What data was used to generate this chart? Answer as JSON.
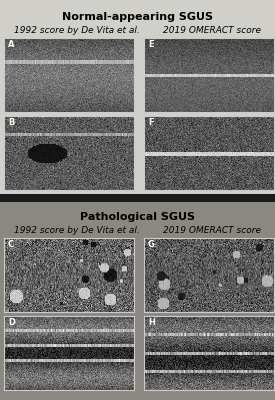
{
  "title_top": "Normal-appearing SGUS",
  "title_bottom": "Pathological SGUS",
  "col_label_left": "1992 score by De Vita et al.",
  "col_label_right": "2019 OMERACT score",
  "panel_labels": [
    "A",
    "E",
    "B",
    "F",
    "C",
    "G",
    "D",
    "H"
  ],
  "bg_color_top": "#d0cfc9",
  "bg_color_bottom": "#8a8880",
  "separator_color": "#1a1a1a",
  "panel_border_color": "#cccccc",
  "title_fontsize": 8,
  "label_fontsize": 6.5,
  "panel_label_fontsize": 6
}
